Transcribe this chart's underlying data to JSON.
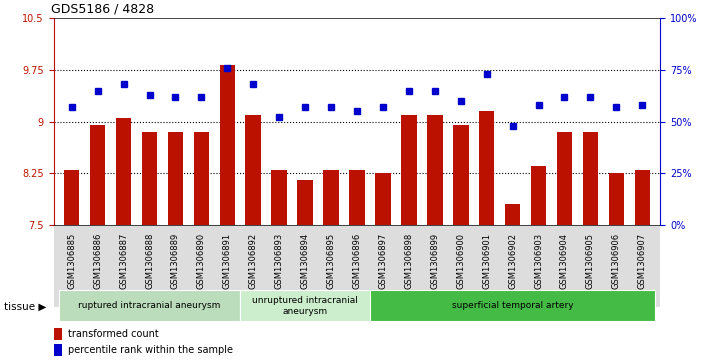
{
  "title": "GDS5186 / 4828",
  "samples": [
    "GSM1306885",
    "GSM1306886",
    "GSM1306887",
    "GSM1306888",
    "GSM1306889",
    "GSM1306890",
    "GSM1306891",
    "GSM1306892",
    "GSM1306893",
    "GSM1306894",
    "GSM1306895",
    "GSM1306896",
    "GSM1306897",
    "GSM1306898",
    "GSM1306899",
    "GSM1306900",
    "GSM1306901",
    "GSM1306902",
    "GSM1306903",
    "GSM1306904",
    "GSM1306905",
    "GSM1306906",
    "GSM1306907"
  ],
  "bar_values": [
    8.3,
    8.95,
    9.05,
    8.85,
    8.85,
    8.85,
    9.82,
    9.1,
    8.3,
    8.15,
    8.3,
    8.3,
    8.25,
    9.1,
    9.1,
    8.95,
    9.15,
    7.8,
    8.35,
    8.85,
    8.85,
    8.25,
    8.3
  ],
  "dot_values": [
    57,
    65,
    68,
    63,
    62,
    62,
    76,
    68,
    52,
    57,
    57,
    55,
    57,
    65,
    65,
    60,
    73,
    48,
    58,
    62,
    62,
    57,
    58
  ],
  "ylim_left": [
    7.5,
    10.5
  ],
  "ylim_right": [
    0,
    100
  ],
  "yticks_left": [
    7.5,
    8.25,
    9.0,
    9.75,
    10.5
  ],
  "yticks_right": [
    0,
    25,
    50,
    75,
    100
  ],
  "ytick_labels_left": [
    "7.5",
    "8.25",
    "9",
    "9.75",
    "10.5"
  ],
  "ytick_labels_right": [
    "0%",
    "25%",
    "50%",
    "75%",
    "100%"
  ],
  "hlines": [
    8.25,
    9.0,
    9.75
  ],
  "bar_color": "#bb1100",
  "dot_color": "#0000cc",
  "groups": [
    {
      "label": "ruptured intracranial aneurysm",
      "start": 0,
      "end": 6,
      "color": "#bbddbb"
    },
    {
      "label": "unruptured intracranial\naneurysm",
      "start": 7,
      "end": 11,
      "color": "#cceecc"
    },
    {
      "label": "superficial temporal artery",
      "start": 12,
      "end": 22,
      "color": "#44bb44"
    }
  ],
  "tissue_label": "tissue ▶",
  "legend_bar_label": "transformed count",
  "legend_dot_label": "percentile rank within the sample",
  "plot_bg_color": "#ffffff",
  "tick_bg_color": "#dddddd",
  "fig_bg_color": "#ffffff"
}
